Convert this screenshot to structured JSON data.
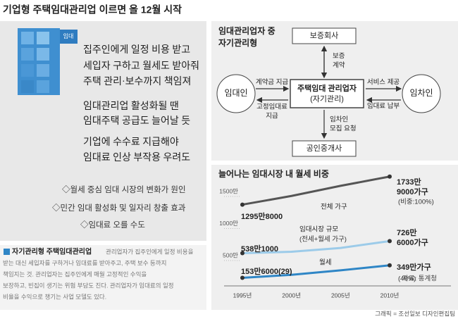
{
  "title": "기업형 주택임대관리업  이르면 올 12월 시작",
  "left": {
    "cube_label": "임대",
    "headlines": [
      [
        "집주인에게 일정 비용 받고",
        "세입자 구하고 월세도 받아줘",
        "주택 관리·보수까지 책임져"
      ],
      [
        "임대관리업 활성화될 땐",
        "임대주택 공급도 늘어날 듯"
      ],
      [
        "기업에 수수료 지급해야",
        "임대료 인상 부작용 우려도"
      ]
    ],
    "bullets": [
      "◇월세 중심 임대 시장의 변화가 원인",
      "◇민간 임대 활성화 및 일자리 창출 효과",
      "◇임대료 오를 수도"
    ]
  },
  "note": {
    "title": "자기관리형 주택임대관리업",
    "lines": [
      "관리업자가 집주인에게 일정 비용을",
      "받는 대신 세입자를 구하거나 임대료를 받아주고, 주택 보수 등까지",
      "책임지는 것. 관리업자는 집주인에게 매월 고정적인 수익을",
      "보장하고, 빈집이 생기는 위험 부담도 진다. 관리업자가 임대료의 일정",
      "비율을 수익으로 챙기는 사업 모델도 있다."
    ]
  },
  "diagram": {
    "title": [
      "임대관리업자 중",
      "자기관리형"
    ],
    "nodes": {
      "guarantor": "보증회사",
      "manager": [
        "주택임대 관리업자",
        "(자기관리)"
      ],
      "broker": "공인중개사",
      "landlord": "임대인",
      "tenant": "임차인"
    },
    "edges": {
      "guarantee": [
        "보증",
        "계약"
      ],
      "deposit": "계약금 지급",
      "fixed_rent": [
        "고정임대료",
        "지급"
      ],
      "service": "서비스 제공",
      "rent": "임대료 납부",
      "recruit": [
        "임차인",
        "모집 요청"
      ]
    }
  },
  "chart_data": {
    "type": "line",
    "title": "늘어나는 임대시장 내 월세 비중",
    "categories": [
      "1995년",
      "2000년",
      "2005년",
      "2010년"
    ],
    "ylim": [
      0,
      1800
    ],
    "yticks": [
      {
        "value": 500,
        "label": "500만"
      },
      {
        "value": 1000,
        "label": "1000만"
      },
      {
        "value": 1500,
        "label": "1500만"
      }
    ],
    "grid": false,
    "series": [
      {
        "name": "전체 가구",
        "color": "#555555",
        "values": [
          1295.8,
          1431,
          1589,
          1733.9
        ],
        "value_labels": [
          "1295만8000",
          null,
          null,
          [
            "1733만",
            "9000가구"
          ]
        ]
      },
      {
        "name": "임대시장 규모",
        "color": "#9ccbe9",
        "values": [
          538.1,
          560,
          620,
          726.6
        ],
        "value_labels": [
          "538만1000",
          null,
          null,
          [
            "726만",
            "6000가구"
          ]
        ]
      },
      {
        "name": "월세",
        "color": "#2f86c6",
        "values": [
          153.6,
          200,
          270,
          349
        ],
        "value_labels": [
          "153만6000(29)",
          null,
          null,
          "349만가구"
        ]
      }
    ],
    "annotations": [
      "(비중:100%)",
      "(전세+월세 가구)",
      "(48%)"
    ],
    "source": "자료: 통계청"
  },
  "credit": "그래픽 = 조선일보 디자인편집팀"
}
